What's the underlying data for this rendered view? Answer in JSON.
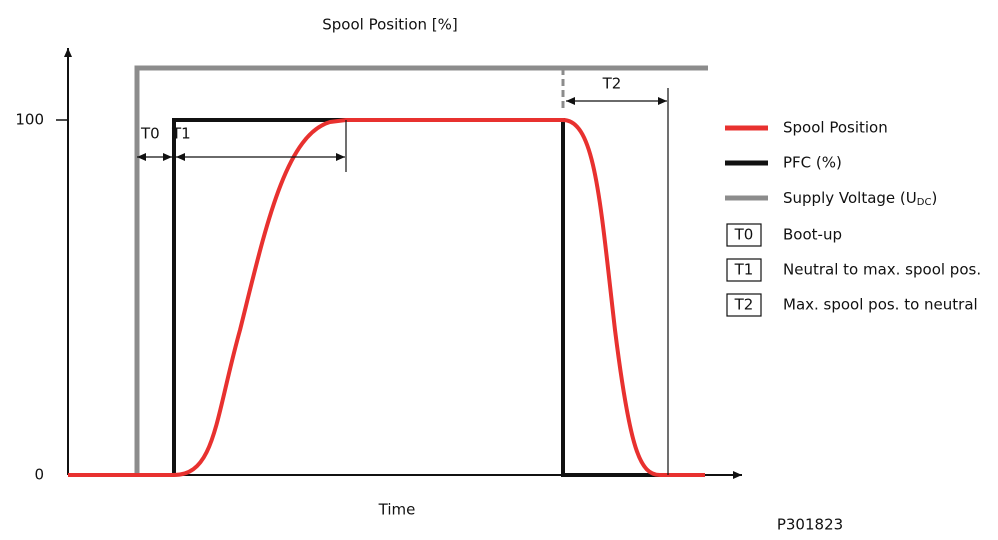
{
  "title": "Spool Position [%]",
  "y_axis": {
    "ticks": [
      "100",
      "0"
    ]
  },
  "x_axis": {
    "label": "Time"
  },
  "intervals": [
    "T0",
    "T1",
    "T2"
  ],
  "legend": [
    {
      "label": "Spool Position",
      "color": "#e8312f"
    },
    {
      "label": "PFC (%)",
      "color": "#111111"
    },
    {
      "label_parts": [
        "Supply Voltage (U",
        "DC",
        ")"
      ],
      "color": "#8c8c8c"
    }
  ],
  "key": [
    {
      "code": "T0",
      "label": "Boot-up"
    },
    {
      "code": "T1",
      "label": "Neutral to max. spool pos."
    },
    {
      "code": "T2",
      "label": "Max. spool pos. to neutral"
    }
  ],
  "figure_id": "P301823"
}
